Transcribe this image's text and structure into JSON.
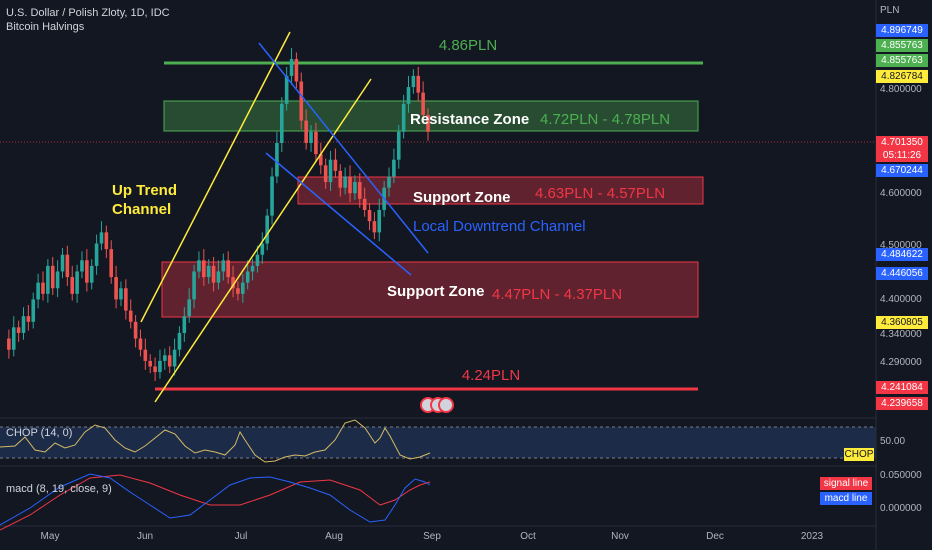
{
  "header": {
    "title": "U.S. Dollar / Polish Zloty, 1D, IDC",
    "indicator": "Bitcoin Halvings"
  },
  "axis": {
    "currency": "PLN",
    "ticks": [
      "4.800000",
      "4.700000",
      "4.600000",
      "4.500000",
      "4.400000",
      "4.340000",
      "4.290000"
    ],
    "badges": [
      {
        "text": "4.896749",
        "bg": "#2962ff",
        "fg": "#ffffff"
      },
      {
        "text": "4.855763",
        "bg": "#4caf50",
        "fg": "#ffffff"
      },
      {
        "text": "4.855763",
        "bg": "#4caf50",
        "fg": "#ffffff"
      },
      {
        "text": "4.826784",
        "bg": "#ffeb3b",
        "fg": "#131722"
      },
      {
        "text": "4.701350",
        "bg": "#f23645",
        "fg": "#ffffff"
      },
      {
        "text": "05:11:26",
        "bg": "#f23645",
        "fg": "#ffffff"
      },
      {
        "text": "4.670244",
        "bg": "#2962ff",
        "fg": "#ffffff"
      },
      {
        "text": "4.484622",
        "bg": "#2962ff",
        "fg": "#ffffff"
      },
      {
        "text": "4.446056",
        "bg": "#2962ff",
        "fg": "#ffffff"
      },
      {
        "text": "4.360805",
        "bg": "#ffeb3b",
        "fg": "#131722"
      },
      {
        "text": "4.241084",
        "bg": "#f23645",
        "fg": "#ffffff"
      },
      {
        "text": "4.239658",
        "bg": "#f23645",
        "fg": "#ffffff"
      }
    ],
    "x_labels": [
      "May",
      "Jun",
      "Jul",
      "Aug",
      "Sep",
      "Oct",
      "Nov",
      "Dec",
      "2023"
    ]
  },
  "annotations": {
    "level_top": "4.86PLN",
    "resistance_label": "Resistance Zone",
    "resistance_range": "4.72PLN - 4.78PLN",
    "support1_label": "Support Zone",
    "support1_range": "4.63PLN - 4.57PLN",
    "downtrend_label": "Local Downtrend Channel",
    "uptrend_label_1": "Up Trend",
    "uptrend_label_2": "Channel",
    "support2_label": "Support Zone",
    "support2_range": "4.47PLN - 4.37PLN",
    "level_bottom": "4.24PLN"
  },
  "chop": {
    "title": "CHOP (14, 0)",
    "level": "50.00",
    "badge": "CHOP",
    "badge_color": "#ffeb3b"
  },
  "macd": {
    "title": "macd (8, 19, close, 9)",
    "ticks": [
      "0.050000",
      "0.000000"
    ],
    "legend_signal": "signal line",
    "legend_macd": "macd line",
    "signal_color": "#f23645",
    "macd_color": "#2962ff"
  },
  "chart_data": {
    "type": "candlestick",
    "ylim": [
      4.22,
      4.9
    ],
    "zones": [
      {
        "name": "Resistance Zone",
        "low": 4.72,
        "high": 4.78,
        "color": "#4caf50"
      },
      {
        "name": "Support Zone",
        "low": 4.57,
        "high": 4.63,
        "color": "#f23645"
      },
      {
        "name": "Support Zone",
        "low": 4.37,
        "high": 4.47,
        "color": "#f23645"
      }
    ],
    "levels": [
      {
        "value": 4.86,
        "color": "#4caf50"
      },
      {
        "value": 4.24,
        "color": "#f23645"
      }
    ],
    "close_series": [
      4.33,
      4.31,
      4.35,
      4.34,
      4.37,
      4.36,
      4.4,
      4.43,
      4.41,
      4.46,
      4.42,
      4.45,
      4.48,
      4.44,
      4.41,
      4.45,
      4.47,
      4.43,
      4.46,
      4.5,
      4.52,
      4.49,
      4.44,
      4.4,
      4.42,
      4.38,
      4.36,
      4.33,
      4.31,
      4.29,
      4.28,
      4.27,
      4.29,
      4.3,
      4.28,
      4.31,
      4.34,
      4.37,
      4.4,
      4.45,
      4.47,
      4.44,
      4.46,
      4.43,
      4.45,
      4.47,
      4.44,
      4.42,
      4.41,
      4.43,
      4.45,
      4.46,
      4.48,
      4.5,
      4.55,
      4.62,
      4.68,
      4.75,
      4.8,
      4.83,
      4.79,
      4.72,
      4.68,
      4.7,
      4.66,
      4.64,
      4.61,
      4.65,
      4.63,
      4.6,
      4.62,
      4.59,
      4.61,
      4.58,
      4.56,
      4.54,
      4.52,
      4.56,
      4.6,
      4.62,
      4.65,
      4.7,
      4.75,
      4.78,
      4.8,
      4.77,
      4.73,
      4.7
    ]
  }
}
